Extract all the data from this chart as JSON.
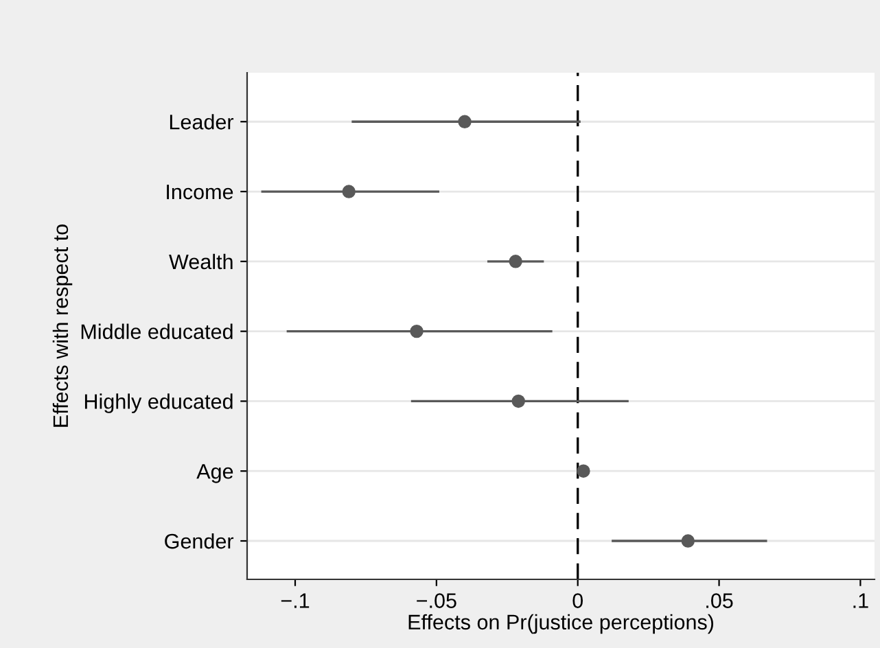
{
  "chart_data": {
    "type": "scatter",
    "orientation": "horizontal",
    "xlabel": "Effects on Pr(justice perceptions)",
    "ylabel": "Effects with respect to",
    "categories": [
      "Leader",
      "Income",
      "Wealth",
      "Middle educated",
      "Highly educated",
      "Age",
      "Gender"
    ],
    "values": [
      -0.04,
      -0.081,
      -0.022,
      -0.057,
      -0.021,
      0.002,
      0.039
    ],
    "errors": [
      [
        -0.08,
        0.001
      ],
      [
        -0.112,
        -0.049
      ],
      [
        -0.032,
        -0.012
      ],
      [
        -0.103,
        -0.009
      ],
      [
        -0.059,
        0.018
      ],
      null,
      [
        0.012,
        0.067
      ]
    ],
    "color": "#595959",
    "marker": "circle",
    "xlim": [
      -0.117,
      0.105
    ],
    "xticks": [
      {
        "value": -0.1,
        "label": "−.1"
      },
      {
        "value": -0.05,
        "label": "−.05"
      },
      0,
      {
        "value": 0.05,
        "label": ".05"
      },
      {
        "value": 0.1,
        "label": ".1"
      }
    ],
    "ref_lines": [
      {
        "axis": "x",
        "value": 0,
        "line_style": "dashed",
        "color": "#000000"
      }
    ],
    "grid": "y"
  }
}
